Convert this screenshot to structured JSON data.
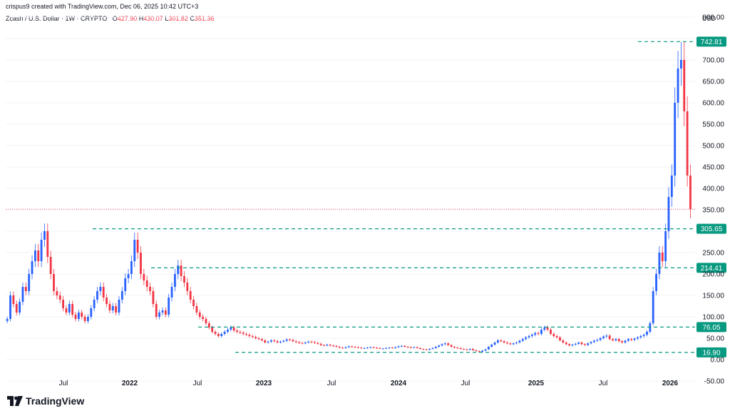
{
  "header": {
    "created_by": "crispus9 created with TradingView.com, Dec 06, 2025 10:42 UTC+3",
    "symbol": "Zcash / U.S. Dollar · 1W · CRYPTO",
    "open_label": "O",
    "open": "427.90",
    "high_label": "H",
    "high": "430.07",
    "low_label": "L",
    "low": "301.82",
    "close_label": "C",
    "close": "351.36",
    "currency": "USD"
  },
  "brand": {
    "name": "TradingView"
  },
  "colors": {
    "up": "#2962ff",
    "down": "#f23645",
    "level_line": "#089981",
    "level_label_bg": "#089981",
    "grid": "#f0f3fa"
  },
  "chart_data": {
    "type": "candlestick",
    "ylim": [
      -60,
      790
    ],
    "y_ticks": [
      -50,
      0,
      50,
      100,
      150,
      200,
      250,
      300,
      350,
      400,
      450,
      500,
      550,
      600,
      650,
      700,
      750,
      800
    ],
    "y_tick_labels": [
      "-50.00",
      "0.00",
      "50.00",
      "100.00",
      "150.00",
      "200.00",
      "250.00",
      "",
      "350.00",
      "400.00",
      "450.00",
      "500.00",
      "550.00",
      "600.00",
      "650.00",
      "700.00",
      "",
      "800.00"
    ],
    "x_tick_labels": [
      "Jul",
      "2022",
      "Jul",
      "2023",
      "Jul",
      "2024",
      "Jul",
      "2025",
      "Jul",
      "2026"
    ],
    "x_tick_bold": [
      false,
      true,
      false,
      true,
      false,
      true,
      false,
      true,
      false,
      true
    ],
    "current_price": 351.36,
    "levels": [
      {
        "value": 742.81,
        "label": "742.81"
      },
      {
        "value": 305.65,
        "label": "305.65"
      },
      {
        "value": 214.41,
        "label": "214.41"
      },
      {
        "value": 76.05,
        "label": "76.05"
      },
      {
        "value": 16.9,
        "label": "16.90"
      }
    ],
    "closes": [
      95,
      150,
      130,
      110,
      135,
      170,
      160,
      200,
      230,
      255,
      230,
      280,
      300,
      240,
      200,
      160,
      150,
      140,
      120,
      110,
      130,
      105,
      95,
      110,
      100,
      90,
      100,
      120,
      140,
      160,
      170,
      145,
      130,
      115,
      125,
      110,
      140,
      160,
      190,
      200,
      230,
      280,
      250,
      200,
      185,
      170,
      160,
      130,
      100,
      110,
      115,
      105,
      145,
      170,
      200,
      220,
      195,
      180,
      160,
      140,
      125,
      110,
      100,
      95,
      85,
      75,
      65,
      60,
      55,
      60,
      65,
      70,
      75,
      68,
      65,
      63,
      60,
      58,
      55,
      53,
      50,
      48,
      45,
      40,
      42,
      45,
      43,
      40,
      42,
      44,
      47,
      46,
      43,
      41,
      39,
      38,
      40,
      42,
      41,
      39,
      37,
      34,
      33,
      35,
      33,
      32,
      30,
      28,
      27,
      29,
      31,
      30,
      29,
      28,
      27,
      27,
      28,
      29,
      28,
      27,
      26,
      26,
      27,
      28,
      27,
      29,
      31,
      32,
      30,
      29,
      28,
      29,
      27,
      25,
      24,
      23,
      25,
      27,
      30,
      33,
      36,
      38,
      34,
      30,
      28,
      27,
      25,
      24,
      23,
      25,
      22,
      20,
      18,
      21,
      24,
      30,
      35,
      40,
      45,
      43,
      40,
      38,
      36,
      38,
      40,
      44,
      48,
      52,
      55,
      58,
      62,
      60,
      70,
      75,
      70,
      60,
      55,
      52,
      45,
      40,
      36,
      33,
      35,
      37,
      40,
      36,
      34,
      38,
      41,
      44,
      46,
      50,
      54,
      56,
      48,
      45,
      48,
      43,
      40,
      44,
      48,
      46,
      49,
      52,
      55,
      58,
      65,
      85,
      160,
      200,
      250,
      230,
      300,
      380,
      430,
      600,
      680,
      700,
      580,
      430,
      351.36
    ]
  }
}
